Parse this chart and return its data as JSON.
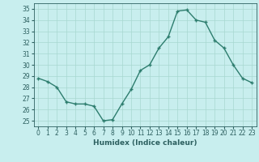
{
  "x": [
    0,
    1,
    2,
    3,
    4,
    5,
    6,
    7,
    8,
    9,
    10,
    11,
    12,
    13,
    14,
    15,
    16,
    17,
    18,
    19,
    20,
    21,
    22,
    23
  ],
  "y": [
    28.8,
    28.5,
    28.0,
    26.7,
    26.5,
    26.5,
    26.3,
    25.0,
    25.1,
    26.5,
    27.8,
    29.5,
    30.0,
    31.5,
    32.5,
    34.8,
    34.9,
    34.0,
    33.8,
    32.2,
    31.5,
    30.0,
    28.8,
    28.4
  ],
  "line_color": "#2d7d6e",
  "marker_color": "#2d7d6e",
  "bg_color": "#c8eeee",
  "grid_color": "#a8d8d0",
  "tick_color": "#2d6060",
  "xlabel": "Humidex (Indice chaleur)",
  "ylim": [
    24.5,
    35.5
  ],
  "xlim": [
    -0.5,
    23.5
  ],
  "yticks": [
    25,
    26,
    27,
    28,
    29,
    30,
    31,
    32,
    33,
    34,
    35
  ],
  "xticks": [
    0,
    1,
    2,
    3,
    4,
    5,
    6,
    7,
    8,
    9,
    10,
    11,
    12,
    13,
    14,
    15,
    16,
    17,
    18,
    19,
    20,
    21,
    22,
    23
  ]
}
